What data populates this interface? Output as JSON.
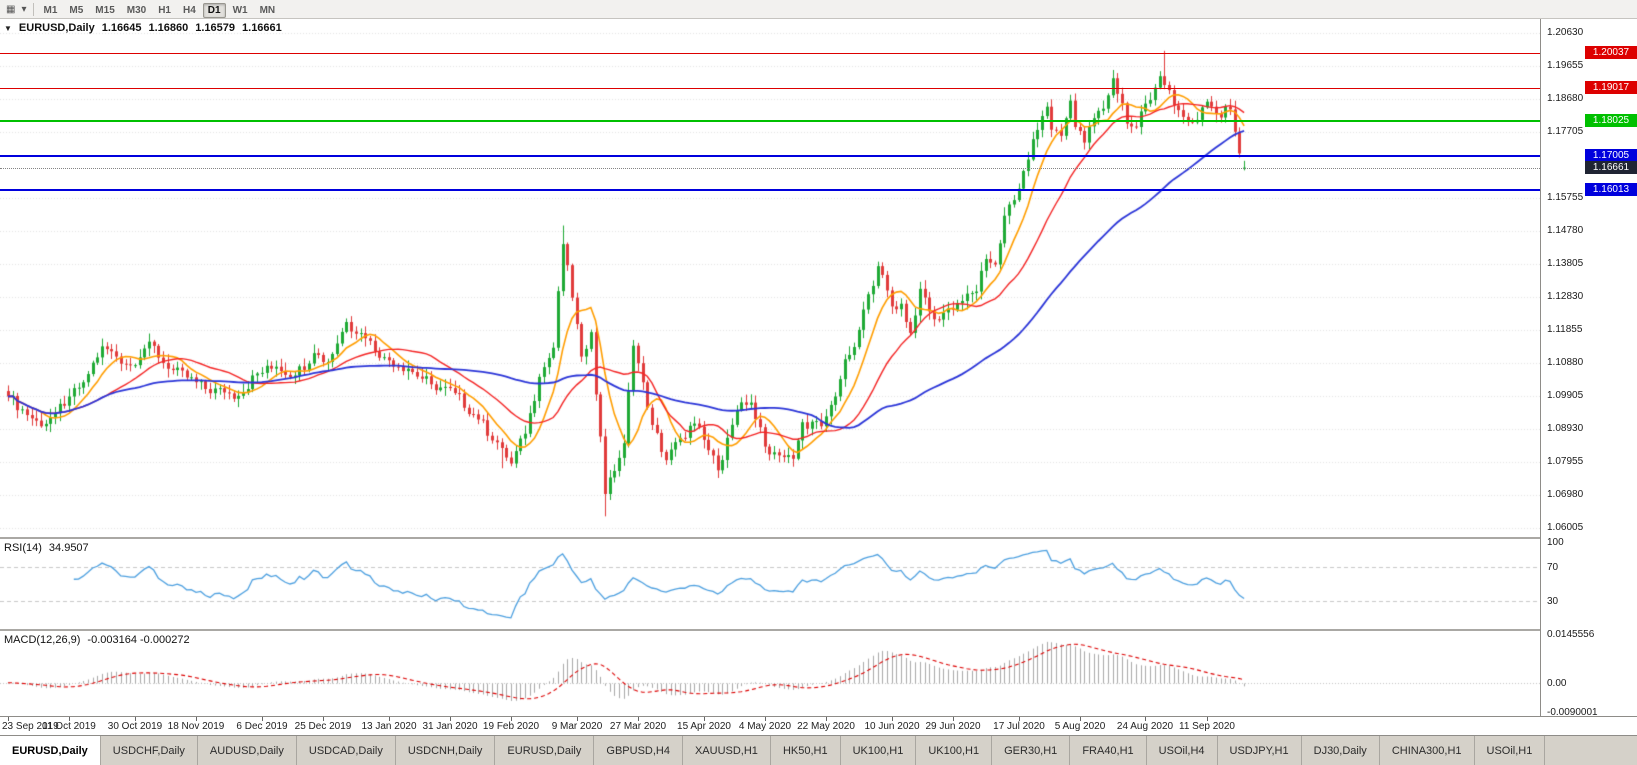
{
  "toolbar": {
    "icons": [
      {
        "name": "new-chart-icon",
        "glyph": "▦"
      },
      {
        "name": "chart-dropdown-icon",
        "glyph": "▾"
      }
    ],
    "timeframes": [
      "M1",
      "M5",
      "M15",
      "M30",
      "H1",
      "H4",
      "D1",
      "W1",
      "MN"
    ],
    "active_timeframe": "D1"
  },
  "header": {
    "caret": "▼",
    "symbol": "EURUSD,Daily",
    "open": "1.16645",
    "high": "1.16860",
    "low": "1.16579",
    "close": "1.16661"
  },
  "price_axis": {
    "ticks": [
      "1.20630",
      "1.19655",
      "1.18680",
      "1.17705",
      "1.15755",
      "1.14780",
      "1.13805",
      "1.12830",
      "1.11855",
      "1.10880",
      "1.09905",
      "1.08930",
      "1.07955",
      "1.06980",
      "1.06005"
    ]
  },
  "current_price": {
    "label": "1.16661",
    "value": 1.16661,
    "badge_color": "#1f2433",
    "line_color": "#848484"
  },
  "rsi_panel": {
    "name": "RSI(14)",
    "value": "34.9507",
    "axis": [
      "100",
      "70",
      "30"
    ]
  },
  "macd_panel": {
    "name": "MACD(12,26,9)",
    "values": "-0.003164 -0.000272",
    "axis_top": "0.0145556",
    "axis_zero": "0.00",
    "axis_bottom": "-0.0090001"
  },
  "time_axis": [
    "23 Sep 2019",
    "11 Oct 2019",
    "30 Oct 2019",
    "18 Nov 2019",
    "6 Dec 2019",
    "25 Dec 2019",
    "13 Jan 2020",
    "31 Jan 2020",
    "19 Feb 2020",
    "9 Mar 2020",
    "27 Mar 2020",
    "15 Apr 2020",
    "4 May 2020",
    "22 May 2020",
    "10 Jun 2020",
    "29 Jun 2020",
    "17 Jul 2020",
    "5 Aug 2020",
    "24 Aug 2020",
    "11 Sep 2020"
  ],
  "tabs": {
    "active_index": 0,
    "items": [
      "EURUSD,Daily",
      "USDCHF,Daily",
      "AUDUSD,Daily",
      "USDCAD,Daily",
      "USDCNH,Daily",
      "EURUSD,Daily",
      "GBPUSD,H4",
      "XAUUSD,H1",
      "HK50,H1",
      "UK100,H1",
      "UK100,H1",
      "GER30,H1",
      "FRA40,H1",
      "USOil,H4",
      "USDJPY,H1",
      "DJ30,Daily",
      "CHINA300,H1",
      "USOil,H1"
    ],
    "cut_off_last": true
  },
  "chart_data": {
    "type": "candlestick",
    "symbol": "EURUSD",
    "timeframe": "Daily",
    "count": 264,
    "price_range": {
      "top": 1.2105,
      "bottom": 1.0575
    },
    "levels": [
      {
        "label": "1.20037",
        "value": 1.20037,
        "color": "#dd0000",
        "width": 1
      },
      {
        "label": "1.19017",
        "value": 1.19017,
        "color": "#dd0000",
        "width": 1
      },
      {
        "label": "1.18025",
        "value": 1.18025,
        "color": "#00c000",
        "width": 2
      },
      {
        "label": "1.17005",
        "value": 1.17005,
        "color": "#0000dd",
        "width": 2
      },
      {
        "label": "1.16013",
        "value": 1.16013,
        "color": "#0000dd",
        "width": 2
      }
    ],
    "close_keypoints": [
      [
        0,
        1.099
      ],
      [
        3,
        1.0952
      ],
      [
        7,
        1.0902
      ],
      [
        10,
        1.0941
      ],
      [
        13,
        1.099
      ],
      [
        16,
        1.1032
      ],
      [
        20,
        1.1138
      ],
      [
        23,
        1.1108
      ],
      [
        26,
        1.1082
      ],
      [
        30,
        1.1152
      ],
      [
        34,
        1.1072
      ],
      [
        38,
        1.1046
      ],
      [
        42,
        1.1012
      ],
      [
        46,
        1.1002
      ],
      [
        49,
        1.0992
      ],
      [
        53,
        1.1058
      ],
      [
        57,
        1.1078
      ],
      [
        61,
        1.1052
      ],
      [
        65,
        1.1118
      ],
      [
        68,
        1.1092
      ],
      [
        72,
        1.121
      ],
      [
        76,
        1.1162
      ],
      [
        80,
        1.1106
      ],
      [
        85,
        1.1072
      ],
      [
        90,
        1.1026
      ],
      [
        95,
        1.1
      ],
      [
        100,
        1.0922
      ],
      [
        105,
        1.0838
      ],
      [
        107,
        1.0792
      ],
      [
        110,
        1.088
      ],
      [
        113,
        1.1048
      ],
      [
        116,
        1.1134
      ],
      [
        118,
        1.144
      ],
      [
        120,
        1.1282
      ],
      [
        122,
        1.1108
      ],
      [
        124,
        1.118
      ],
      [
        125,
        1.0996
      ],
      [
        126,
        1.0872
      ],
      [
        127,
        1.0702
      ],
      [
        129,
        1.077
      ],
      [
        131,
        1.0852
      ],
      [
        133,
        1.114
      ],
      [
        135,
        1.1032
      ],
      [
        137,
        1.0906
      ],
      [
        140,
        1.0802
      ],
      [
        143,
        1.0868
      ],
      [
        146,
        1.091
      ],
      [
        148,
        1.0862
      ],
      [
        151,
        1.0772
      ],
      [
        155,
        1.095
      ],
      [
        158,
        1.0972
      ],
      [
        161,
        1.0842
      ],
      [
        164,
        1.0816
      ],
      [
        167,
        1.0806
      ],
      [
        169,
        1.0914
      ],
      [
        173,
        1.0902
      ],
      [
        176,
        1.099
      ],
      [
        178,
        1.11
      ],
      [
        180,
        1.1136
      ],
      [
        183,
        1.1292
      ],
      [
        185,
        1.1375
      ],
      [
        188,
        1.1256
      ],
      [
        190,
        1.1264
      ],
      [
        192,
        1.1178
      ],
      [
        194,
        1.1308
      ],
      [
        197,
        1.1218
      ],
      [
        200,
        1.125
      ],
      [
        203,
        1.1272
      ],
      [
        206,
        1.13
      ],
      [
        208,
        1.1396
      ],
      [
        210,
        1.138
      ],
      [
        212,
        1.1524
      ],
      [
        214,
        1.157
      ],
      [
        216,
        1.1656
      ],
      [
        218,
        1.175
      ],
      [
        221,
        1.1846
      ],
      [
        222,
        1.1778
      ],
      [
        224,
        1.176
      ],
      [
        226,
        1.1864
      ],
      [
        227,
        1.1786
      ],
      [
        229,
        1.174
      ],
      [
        231,
        1.1812
      ],
      [
        233,
        1.184
      ],
      [
        235,
        1.193
      ],
      [
        237,
        1.1856
      ],
      [
        238,
        1.1796
      ],
      [
        240,
        1.1786
      ],
      [
        241,
        1.1832
      ],
      [
        244,
        1.1902
      ],
      [
        245,
        1.1936
      ],
      [
        246,
        1.191
      ],
      [
        248,
        1.185
      ],
      [
        250,
        1.1816
      ],
      [
        252,
        1.18
      ],
      [
        254,
        1.1844
      ],
      [
        256,
        1.1846
      ],
      [
        258,
        1.1814
      ],
      [
        259,
        1.1846
      ],
      [
        260,
        1.1838
      ],
      [
        261,
        1.1772
      ],
      [
        262,
        1.1708
      ],
      [
        263,
        1.16661
      ]
    ],
    "spikes": [
      {
        "i": 105,
        "l": 1.0778
      },
      {
        "i": 118,
        "h": 1.1495
      },
      {
        "i": 127,
        "l": 1.0636
      },
      {
        "i": 246,
        "h": 1.2011
      },
      {
        "i": 263,
        "o": 1.16645,
        "h": 1.1686,
        "l": 1.16579,
        "c": 1.16661
      }
    ],
    "moving_averages": [
      {
        "period": 8,
        "color": "#ff9e00",
        "width": 1.6
      },
      {
        "period": 20,
        "color": "#f42525",
        "width": 1.4
      },
      {
        "period": 55,
        "color": "#2b35d8",
        "width": 1.8
      }
    ],
    "macd_range": {
      "max": 0.0145556,
      "min": -0.0090001
    },
    "colors": {
      "up": "#1faa35",
      "down": "#e13b3b",
      "grid": "#e3e3e3",
      "rsi_line": "#4da0e0",
      "rsi_levels": "#c8c8c8",
      "macd_hist": "#a9a9a9",
      "macd_signal": "#dd0000"
    }
  }
}
